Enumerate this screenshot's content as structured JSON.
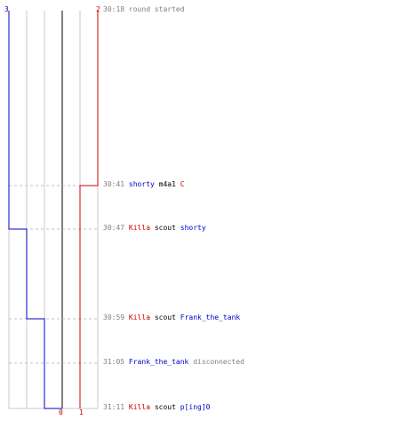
{
  "colors": {
    "team_blue": "#0000c8",
    "team_red": "#cc0000",
    "grid": "#c8c8c8",
    "center": "#808080",
    "time": "#808080"
  },
  "chart_data": {
    "type": "line",
    "x_ticks": [
      "0",
      "1"
    ],
    "blue_top_count": "3",
    "red_top_count": "2",
    "blue_steps": [
      3,
      2,
      1,
      0
    ],
    "red_steps": [
      2,
      1
    ],
    "events": [
      {
        "time": "30:18",
        "parts": [
          {
            "text": "round started",
            "cls": "gray"
          }
        ]
      },
      {
        "time": "30:41",
        "parts": [
          {
            "text": "shorty",
            "cls": "blue"
          },
          {
            "text": "m4a1",
            "cls": "blk"
          },
          {
            "text": "C",
            "cls": "red"
          }
        ]
      },
      {
        "time": "30:47",
        "parts": [
          {
            "text": "Killa",
            "cls": "red"
          },
          {
            "text": "scout",
            "cls": "blk"
          },
          {
            "text": "shorty",
            "cls": "blue"
          }
        ]
      },
      {
        "time": "30:59",
        "parts": [
          {
            "text": "Killa",
            "cls": "red"
          },
          {
            "text": "scout",
            "cls": "blk"
          },
          {
            "text": "Frank_the_tank",
            "cls": "blue"
          }
        ]
      },
      {
        "time": "31:05",
        "parts": [
          {
            "text": "Frank_the_tank",
            "cls": "blue"
          },
          {
            "text": "disconnected",
            "cls": "gray"
          }
        ]
      },
      {
        "time": "31:11",
        "parts": [
          {
            "text": "Killa",
            "cls": "red"
          },
          {
            "text": "scout",
            "cls": "blk"
          },
          {
            "text": "p[ing]0",
            "cls": "blue"
          }
        ]
      }
    ]
  }
}
